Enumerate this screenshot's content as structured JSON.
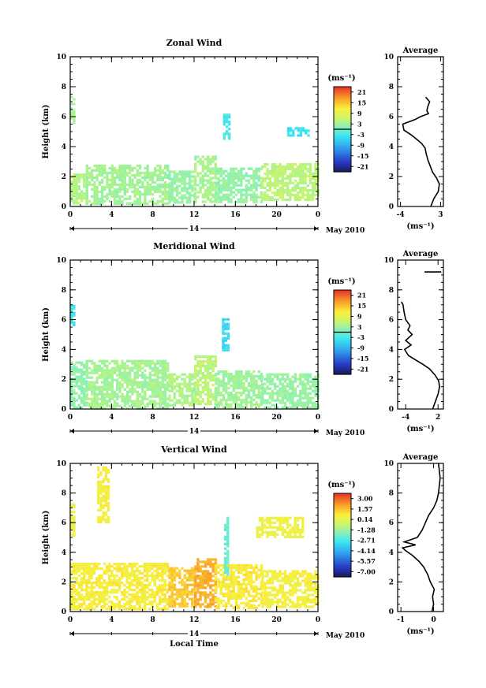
{
  "chart_data": [
    {
      "type": "heatmap",
      "title": "Zonal Wind",
      "xlabel": "",
      "ylabel": "Height (km)",
      "xlim": [
        0,
        24
      ],
      "ylim": [
        0,
        10
      ],
      "xticks": [
        "0",
        "4",
        "8",
        "12",
        "16",
        "20",
        "0"
      ],
      "yticks": [
        "0",
        "2",
        "4",
        "6",
        "8",
        "10"
      ],
      "day_label": "14",
      "date_label": "May 2010",
      "colorbar": {
        "unit": "(ms⁻¹)",
        "ticks": [
          "21",
          "15",
          "9",
          "3",
          "-3",
          "-9",
          "-15",
          "-21"
        ],
        "range": [
          -24,
          24
        ]
      },
      "regions": [
        {
          "t": [
            0.0,
            1.5
          ],
          "h": [
            0.3,
            2.2
          ],
          "v": 4.5
        },
        {
          "t": [
            1.5,
            9.5
          ],
          "h": [
            0.2,
            2.8
          ],
          "v": 3.2
        },
        {
          "t": [
            9.5,
            12.0
          ],
          "h": [
            0.3,
            2.4
          ],
          "v": 2.5
        },
        {
          "t": [
            12.0,
            14.0
          ],
          "h": [
            0.3,
            3.4
          ],
          "v": 3.6
        },
        {
          "t": [
            14.0,
            18.5
          ],
          "h": [
            0.3,
            2.6
          ],
          "v": 2.2
        },
        {
          "t": [
            18.5,
            24.0
          ],
          "h": [
            0.4,
            2.9
          ],
          "v": 5.0
        },
        {
          "t": [
            0.0,
            0.3
          ],
          "h": [
            5.6,
            7.4
          ],
          "v": 4.0
        },
        {
          "t": [
            14.8,
            15.3
          ],
          "h": [
            4.6,
            6.2
          ],
          "v": -3.0
        },
        {
          "t": [
            21.0,
            23.2
          ],
          "h": [
            4.8,
            5.3
          ],
          "v": -4.0
        }
      ],
      "average_panel": {
        "title": "Average",
        "xlabel": "(ms⁻¹)",
        "xticks": [
          "-4",
          "3"
        ],
        "xlim": [
          -4.5,
          3.5
        ],
        "profile": {
          "x": [
            1.3,
            1.8,
            2.6,
            2.8,
            2.3,
            1.6,
            1.2,
            0.8,
            0.5,
            0.3,
            -0.3,
            -1.2,
            -2.2,
            -3.4,
            -3.6,
            -1.5,
            -0.5,
            0.9,
            0.6,
            0.8,
            1.1,
            0.4
          ],
          "y": [
            0.0,
            0.5,
            1.0,
            1.5,
            1.9,
            2.3,
            2.7,
            3.1,
            3.5,
            3.9,
            4.2,
            4.5,
            4.8,
            5.1,
            5.5,
            5.8,
            6.0,
            6.2,
            6.4,
            6.7,
            7.0,
            7.3
          ]
        }
      }
    },
    {
      "type": "heatmap",
      "title": "Meridional Wind",
      "xlabel": "",
      "ylabel": "Height (km)",
      "xlim": [
        0,
        24
      ],
      "ylim": [
        0,
        10
      ],
      "xticks": [
        "0",
        "4",
        "8",
        "12",
        "16",
        "20",
        "0"
      ],
      "yticks": [
        "0",
        "2",
        "4",
        "6",
        "8",
        "10"
      ],
      "day_label": "14",
      "date_label": "May 2010",
      "colorbar": {
        "unit": "(ms⁻¹)",
        "ticks": [
          "21",
          "15",
          "9",
          "3",
          "-3",
          "-9",
          "-15",
          "-21"
        ],
        "range": [
          -24,
          24
        ]
      },
      "regions": [
        {
          "t": [
            0.0,
            1.5
          ],
          "h": [
            0.1,
            3.2
          ],
          "v": 2.0
        },
        {
          "t": [
            1.5,
            9.5
          ],
          "h": [
            0.1,
            3.3
          ],
          "v": 3.4
        },
        {
          "t": [
            9.5,
            12.0
          ],
          "h": [
            0.2,
            2.4
          ],
          "v": 4.0
        },
        {
          "t": [
            12.0,
            14.0
          ],
          "h": [
            0.3,
            3.6
          ],
          "v": 5.0
        },
        {
          "t": [
            14.0,
            18.5
          ],
          "h": [
            0.2,
            2.6
          ],
          "v": 3.0
        },
        {
          "t": [
            18.5,
            24.0
          ],
          "h": [
            0.1,
            2.4
          ],
          "v": 2.5
        },
        {
          "t": [
            0.0,
            0.3
          ],
          "h": [
            5.7,
            7.0
          ],
          "v": -4.0
        },
        {
          "t": [
            14.7,
            15.2
          ],
          "h": [
            3.9,
            6.1
          ],
          "v": -5.0
        }
      ],
      "average_panel": {
        "title": "Average",
        "xlabel": "(ms⁻¹)",
        "xticks": [
          "-4",
          "2"
        ],
        "xlim": [
          -5.5,
          3.0
        ],
        "profile": {
          "x": [
            1.0,
            1.5,
            2.0,
            2.3,
            2.1,
            1.4,
            0.4,
            -0.8,
            -2.2,
            -3.5,
            -4.2,
            -3.0,
            -4.0,
            -2.8,
            -3.6,
            -3.2,
            -4.0,
            -4.3,
            -4.5,
            -4.8
          ],
          "y": [
            0.0,
            0.5,
            1.0,
            1.5,
            1.9,
            2.3,
            2.7,
            3.0,
            3.3,
            3.6,
            4.0,
            4.3,
            4.6,
            5.0,
            5.3,
            5.6,
            6.0,
            6.5,
            7.0,
            7.2
          ]
        },
        "segments": [
          {
            "x": [
              -0.5,
              2.6
            ],
            "y": [
              9.2,
              9.2
            ]
          }
        ]
      }
    },
    {
      "type": "heatmap",
      "title": "Vertical Wind",
      "xlabel": "Local Time",
      "ylabel": "Height (km)",
      "xlim": [
        0,
        24
      ],
      "ylim": [
        0,
        10
      ],
      "xticks": [
        "0",
        "4",
        "8",
        "12",
        "16",
        "20",
        "0"
      ],
      "yticks": [
        "0",
        "2",
        "4",
        "6",
        "8",
        "10"
      ],
      "day_label": "14",
      "date_label": "May 2010",
      "colorbar": {
        "unit": "(ms⁻¹)",
        "ticks": [
          "3.00",
          "1.57",
          "0.14",
          "-1.28",
          "-2.71",
          "-4.14",
          "-5.57",
          "-7.00"
        ],
        "range": [
          -7.7,
          3.7
        ]
      },
      "regions": [
        {
          "t": [
            0.0,
            9.5
          ],
          "h": [
            0.2,
            3.3
          ],
          "v": 0.7
        },
        {
          "t": [
            9.5,
            12.0
          ],
          "h": [
            0.3,
            3.0
          ],
          "v": 1.4
        },
        {
          "t": [
            12.0,
            14.0
          ],
          "h": [
            0.4,
            3.6
          ],
          "v": 1.9
        },
        {
          "t": [
            14.0,
            18.5
          ],
          "h": [
            0.3,
            3.2
          ],
          "v": 0.8
        },
        {
          "t": [
            18.5,
            24.0
          ],
          "h": [
            0.3,
            2.8
          ],
          "v": 0.6
        },
        {
          "t": [
            0.0,
            0.3
          ],
          "h": [
            5.2,
            7.3
          ],
          "v": 0.3
        },
        {
          "t": [
            2.6,
            3.7
          ],
          "h": [
            6.0,
            9.8
          ],
          "v": 0.6
        },
        {
          "t": [
            14.9,
            15.3
          ],
          "h": [
            2.5,
            6.4
          ],
          "v": -2.2
        },
        {
          "t": [
            18.0,
            22.5
          ],
          "h": [
            5.0,
            6.4
          ],
          "v": 0.4
        }
      ],
      "average_panel": {
        "title": "Average",
        "xlabel": "(ms⁻¹)",
        "xticks": [
          "-1",
          "0"
        ],
        "xlim": [
          -1.1,
          0.3
        ],
        "profile": {
          "x": [
            -0.05,
            0.0,
            -0.03,
            0.02,
            -0.1,
            -0.18,
            -0.3,
            -0.45,
            -0.65,
            -0.85,
            -0.95,
            -0.55,
            -0.9,
            -0.5,
            -0.35,
            -0.25,
            -0.15,
            0.0,
            0.1,
            0.15,
            0.2,
            0.15
          ],
          "y": [
            0.0,
            0.5,
            1.0,
            1.5,
            2.0,
            2.5,
            3.0,
            3.4,
            3.8,
            4.1,
            4.3,
            4.5,
            4.7,
            5.0,
            5.5,
            6.0,
            6.5,
            7.0,
            7.5,
            8.0,
            9.0,
            10.0
          ]
        }
      }
    }
  ]
}
